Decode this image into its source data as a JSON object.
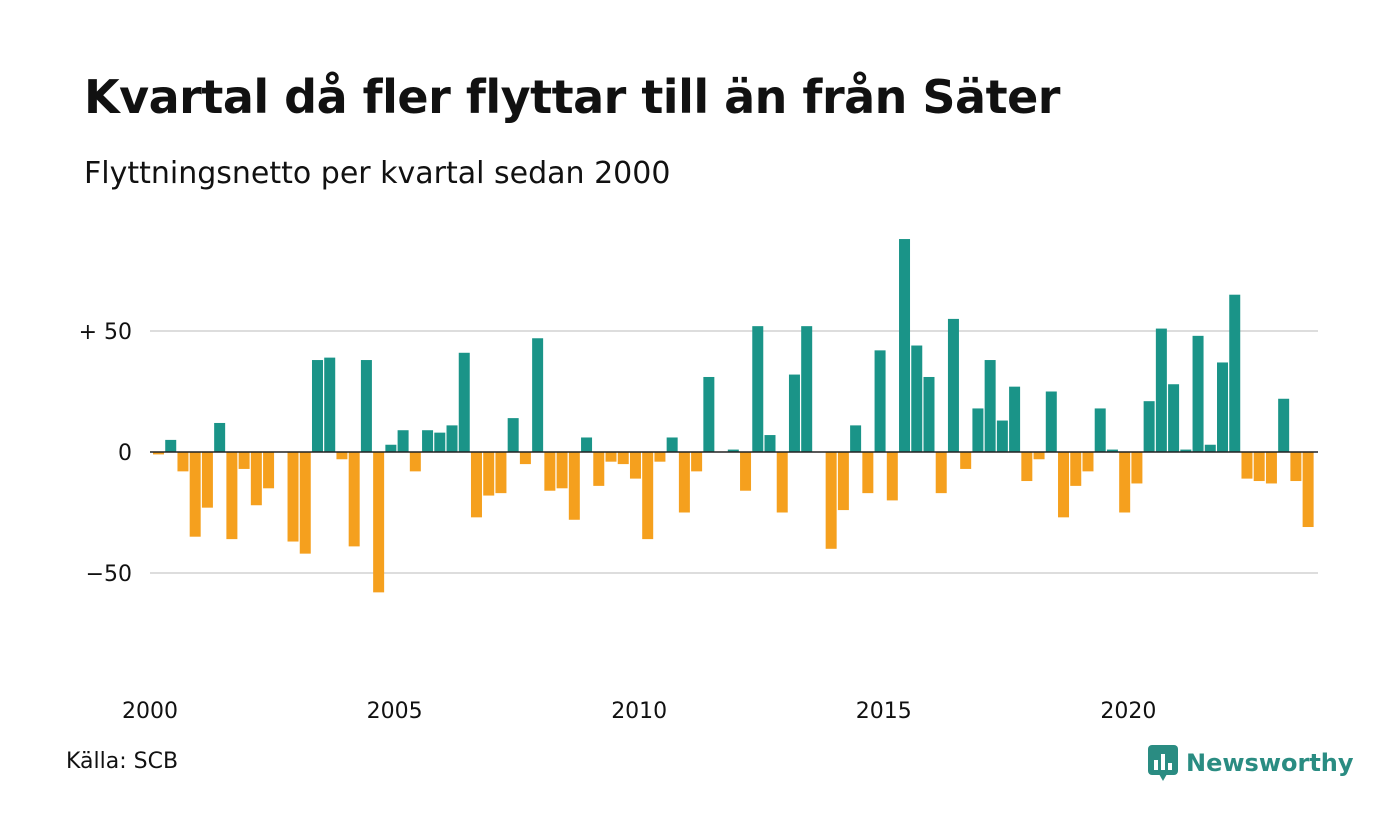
{
  "title": "Kvartal då fler flyttar till än från Säter",
  "subtitle": "Flyttningsnetto per kvartal sedan 2000",
  "source": "Källa: SCB",
  "brand": "Newsworthy",
  "colors": {
    "positive": "#1a9488",
    "negative": "#f5a01e",
    "grid": "#dddddd",
    "brand": "#2a8c82"
  },
  "chart_data": {
    "type": "bar",
    "start_year": 2000,
    "quarters_per_year": 4,
    "ylim": [
      -98,
      90
    ],
    "y_ticks": [
      {
        "value": 50,
        "label": "+ 50"
      },
      {
        "value": 0,
        "label": "0"
      },
      {
        "value": -50,
        "label": "−50"
      }
    ],
    "x_ticks": [
      {
        "year": 2000,
        "label": "2000"
      },
      {
        "year": 2005,
        "label": "2005"
      },
      {
        "year": 2010,
        "label": "2010"
      },
      {
        "year": 2015,
        "label": "2015"
      },
      {
        "year": 2020,
        "label": "2020"
      }
    ],
    "values": [
      -1,
      5,
      -8,
      -35,
      -23,
      12,
      -36,
      -7,
      -22,
      -15,
      0,
      -37,
      -42,
      38,
      39,
      -3,
      -39,
      38,
      -58,
      3,
      9,
      -8,
      9,
      8,
      11,
      41,
      -27,
      -18,
      -17,
      14,
      -5,
      47,
      -16,
      -15,
      -28,
      6,
      -14,
      -4,
      -5,
      -11,
      -36,
      -4,
      6,
      -25,
      -8,
      31,
      0,
      1,
      -16,
      52,
      7,
      -25,
      32,
      52,
      0,
      -40,
      -24,
      11,
      -17,
      42,
      -20,
      88,
      44,
      31,
      -17,
      55,
      -7,
      18,
      38,
      13,
      27,
      -12,
      -3,
      25,
      -27,
      -14,
      -8,
      18,
      1,
      -25,
      -13,
      21,
      51,
      28,
      1,
      48,
      3,
      37,
      65,
      -11,
      -12,
      -13,
      22,
      -12,
      -31
    ]
  }
}
